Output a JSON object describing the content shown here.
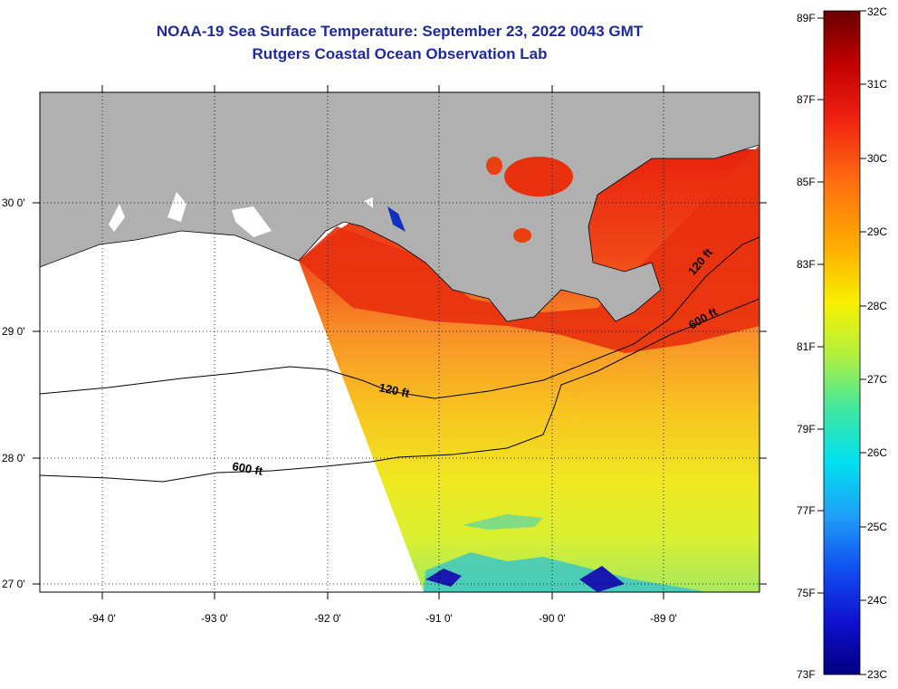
{
  "title": "NOAA-19 Sea Surface Temperature:  September 23, 2022 0043 GMT",
  "subtitle": "Rutgers Coastal Ocean Observation Lab",
  "axes": {
    "lon_labels": [
      "-94 0'",
      "-93 0'",
      "-92 0'",
      "-91 0'",
      "-90 0'",
      "-89 0'"
    ],
    "lat_labels": [
      "30 0'",
      "29 0'",
      "28 0'",
      "27 0'"
    ]
  },
  "contours": {
    "label_120": "120 ft",
    "label_600": "600 ft"
  },
  "colorbar": {
    "fahrenheit": [
      "89F",
      "87F",
      "85F",
      "83F",
      "81F",
      "79F",
      "77F",
      "75F",
      "73F"
    ],
    "celsius": [
      "32C",
      "31C",
      "30C",
      "29C",
      "28C",
      "27C",
      "26C",
      "25C",
      "24C",
      "23C"
    ]
  },
  "colors": {
    "land": "#b0b0b0",
    "title": "#1f2a9c",
    "warm": "#e62e10",
    "cool": "#1030c0"
  }
}
